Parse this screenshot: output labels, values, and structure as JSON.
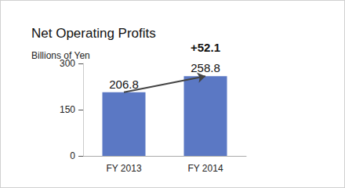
{
  "chart_data": {
    "type": "bar",
    "title": "Net Operating Profits",
    "ylabel": "Billions of Yen",
    "categories": [
      "FY 2013",
      "FY 2014"
    ],
    "values": [
      206.8,
      258.8
    ],
    "color": "#5b78c4",
    "ylim": [
      0,
      300
    ],
    "yticks": [
      0,
      150,
      300
    ],
    "grid": false,
    "data_labels": true,
    "annotation": "+52.1"
  }
}
